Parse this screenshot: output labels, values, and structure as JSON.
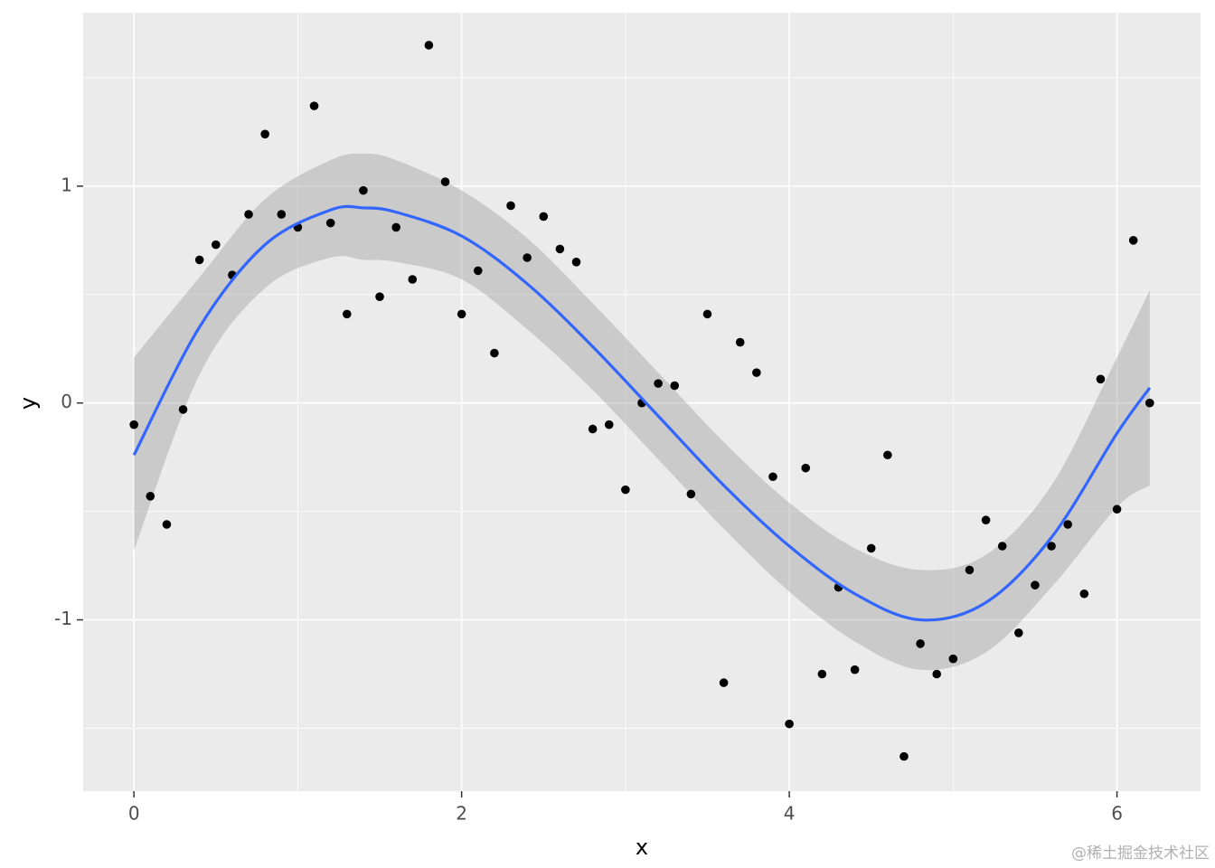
{
  "chart_data": {
    "type": "scatter",
    "x_label": "x",
    "y_label": "y",
    "xlim": [
      -0.31,
      6.51
    ],
    "ylim": [
      -1.79,
      1.8
    ],
    "xticks": [
      0,
      2,
      4,
      6
    ],
    "yticks": [
      -1,
      0,
      1
    ],
    "minor_xticks": [
      1,
      3,
      5
    ],
    "minor_yticks": [
      -1.5,
      -0.5,
      0.5,
      1.5
    ],
    "grid": true,
    "points": {
      "color": "#000000",
      "x": [
        0,
        0.1,
        0.2,
        0.3,
        0.4,
        0.5,
        0.6,
        0.7,
        0.8,
        0.9,
        1.0,
        1.1,
        1.2,
        1.3,
        1.4,
        1.5,
        1.6,
        1.7,
        1.8,
        1.9,
        2.0,
        2.1,
        2.2,
        2.3,
        2.4,
        2.5,
        2.6,
        2.7,
        2.8,
        2.9,
        3.0,
        3.1,
        3.2,
        3.3,
        3.4,
        3.5,
        3.6,
        3.7,
        3.8,
        3.9,
        4.0,
        4.1,
        4.2,
        4.3,
        4.4,
        4.5,
        4.6,
        4.7,
        4.8,
        4.9,
        5.0,
        5.1,
        5.2,
        5.3,
        5.4,
        5.5,
        5.6,
        5.7,
        5.8,
        5.9,
        6.0,
        6.1,
        6.2
      ],
      "values": [
        -0.1,
        -0.43,
        -0.56,
        -0.03,
        0.66,
        0.73,
        0.59,
        0.87,
        1.24,
        0.87,
        0.81,
        1.37,
        0.83,
        0.41,
        0.98,
        0.49,
        0.81,
        0.57,
        1.65,
        1.02,
        0.41,
        0.61,
        0.23,
        0.91,
        0.67,
        0.86,
        0.71,
        0.65,
        -0.12,
        -0.1,
        -0.4,
        0.0,
        0.09,
        0.08,
        -0.42,
        0.41,
        -1.29,
        0.28,
        0.14,
        -0.34,
        -1.48,
        -0.3,
        -1.25,
        -0.85,
        -1.23,
        -0.67,
        -0.24,
        -1.63,
        -1.11,
        -1.25,
        -1.18,
        -0.77,
        -0.54,
        -0.66,
        -1.06,
        -0.84,
        -0.66,
        -0.56,
        -0.88,
        0.11,
        -0.49,
        0.75,
        0.0
      ]
    },
    "smooth": {
      "color": "#3366FF",
      "band_color": "#999999",
      "x": [
        0,
        0.4,
        0.8,
        1.2,
        1.4,
        1.6,
        2.0,
        2.4,
        2.8,
        3.2,
        3.6,
        4.0,
        4.4,
        4.8,
        5.2,
        5.6,
        6.0,
        6.2
      ],
      "values": [
        -0.24,
        0.35,
        0.73,
        0.89,
        0.9,
        0.88,
        0.77,
        0.55,
        0.26,
        -0.06,
        -0.38,
        -0.66,
        -0.88,
        -1.0,
        -0.92,
        -0.62,
        -0.14,
        0.07
      ],
      "lower": [
        -0.68,
        0.13,
        0.53,
        0.67,
        0.66,
        0.65,
        0.57,
        0.34,
        0.06,
        -0.26,
        -0.58,
        -0.87,
        -1.1,
        -1.23,
        -1.15,
        -0.85,
        -0.48,
        -0.38
      ],
      "upper": [
        0.21,
        0.58,
        0.94,
        1.12,
        1.15,
        1.12,
        0.98,
        0.76,
        0.46,
        0.14,
        -0.18,
        -0.46,
        -0.67,
        -0.77,
        -0.7,
        -0.38,
        0.21,
        0.52
      ]
    },
    "watermark": "@稀土掘金技术社区"
  }
}
